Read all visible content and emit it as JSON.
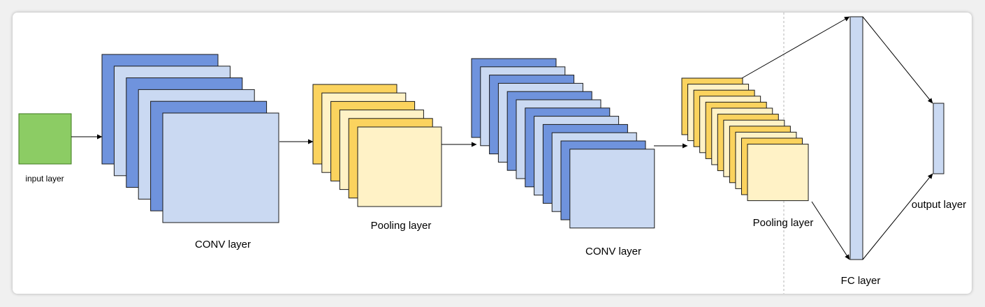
{
  "diagram": {
    "labels": {
      "input": "input layer",
      "conv1": "CONV layer",
      "pool1": "Pooling layer",
      "conv2": "CONV layer",
      "pool2": "Pooling layer",
      "fc": "FC layer",
      "output": "output layer"
    },
    "colors": {
      "input_fill": "#8ccc64",
      "input_stroke": "#3e7a1e",
      "conv_dark": "#6f93dd",
      "conv_light": "#cad9f2",
      "conv_stroke": "#1a1a1a",
      "pool_dark": "#fbd35e",
      "pool_light": "#fff2c6",
      "fc_fill": "#cad9f2",
      "arrow": "#000000",
      "separator": "#b4b4b4"
    }
  }
}
